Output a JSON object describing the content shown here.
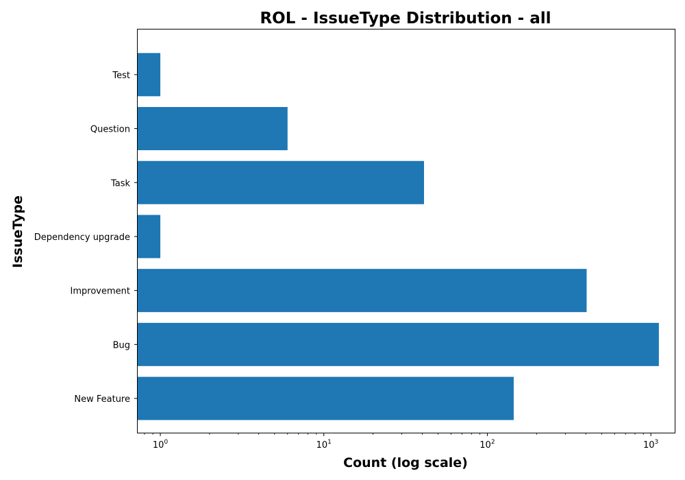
{
  "chart_data": {
    "type": "bar",
    "orientation": "horizontal",
    "title": "ROL - IssueType Distribution - all",
    "xlabel": "Count (log scale)",
    "ylabel": "IssueType",
    "x_scale": "log",
    "xlim": [
      0.72,
      1400
    ],
    "categories": [
      "New Feature",
      "Bug",
      "Improvement",
      "Dependency upgrade",
      "Task",
      "Question",
      "Test"
    ],
    "values": [
      145,
      1120,
      405,
      1,
      41,
      6,
      1
    ],
    "x_ticks": [
      {
        "base": "10",
        "exp": "0",
        "value": 1
      },
      {
        "base": "10",
        "exp": "1",
        "value": 10
      },
      {
        "base": "10",
        "exp": "2",
        "value": 100
      },
      {
        "base": "10",
        "exp": "3",
        "value": 1000
      }
    ],
    "bar_color": "#1f77b4",
    "grid": false,
    "legend": "none"
  }
}
